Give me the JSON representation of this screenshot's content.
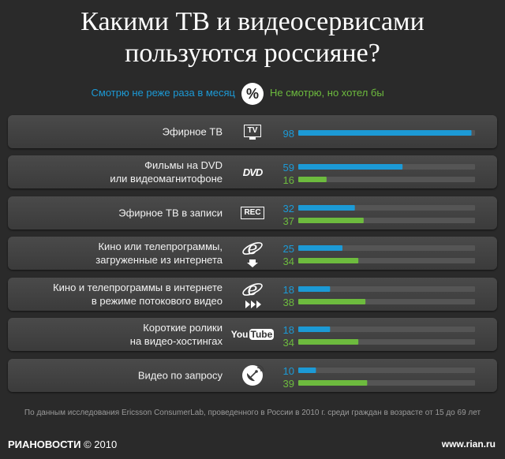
{
  "title_line1": "Какими ТВ и видеосервисами",
  "title_line2": "пользуются россияне?",
  "legend": {
    "left": "Смотрю не реже раза в месяц",
    "center": "%",
    "right": "Не смотрю, но хотел бы",
    "left_color": "#1c9ad6",
    "right_color": "#6dbb3e"
  },
  "rows": [
    {
      "label1": "Эфирное ТВ",
      "label2": "",
      "icon": "tv-icon"
    },
    {
      "label1": "Фильмы на DVD",
      "label2": "или видеомагнитофоне",
      "icon": "dvd-icon"
    },
    {
      "label1": "Эфирное ТВ в записи",
      "label2": "",
      "icon": "rec-icon"
    },
    {
      "label1": "Кино или телепрограммы,",
      "label2": "загруженные из интернета",
      "icon": "ie-download-icon"
    },
    {
      "label1": "Кино и телепрограммы в интернете",
      "label2": "в режиме потокового видео",
      "icon": "ie-stream-icon"
    },
    {
      "label1": "Короткие ролики",
      "label2": "на видео-хостингах",
      "icon": "youtube-icon"
    },
    {
      "label1": "Видео по запросу",
      "label2": "",
      "icon": "satellite-icon"
    }
  ],
  "icon_text": {
    "tv": "TV",
    "dvd": "DVD",
    "rec": "REC",
    "yt_you": "You",
    "yt_tube": "Tube"
  },
  "chart_data": {
    "type": "bar",
    "categories": [
      "Эфирное ТВ",
      "Фильмы на DVD или видеомагнитофоне",
      "Эфирное ТВ в записи",
      "Кино или телепрограммы, загруженные из интернета",
      "Кино и телепрограммы в интернете в режиме потокового видео",
      "Короткие ролики на видео-хостингах",
      "Видео по запросу"
    ],
    "series": [
      {
        "name": "Смотрю не реже раза в месяц",
        "color": "#1c9ad6",
        "values": [
          98,
          59,
          32,
          25,
          18,
          18,
          10
        ]
      },
      {
        "name": "Не смотрю, но хотел бы",
        "color": "#6dbb3e",
        "values": [
          null,
          16,
          37,
          34,
          38,
          34,
          39
        ]
      }
    ],
    "ylim": [
      0,
      100
    ],
    "title": "Какими ТВ и видеосервисами пользуются россияне?"
  },
  "footnote": "По данным исследования Ericsson ConsumerLab, проведенного в России в 2010 г. среди граждан в возрасте от 15 до 69 лет",
  "footer": {
    "brand": "РИАНОВОСТИ",
    "copyright": "© 2010",
    "url": "www.rian.ru"
  }
}
